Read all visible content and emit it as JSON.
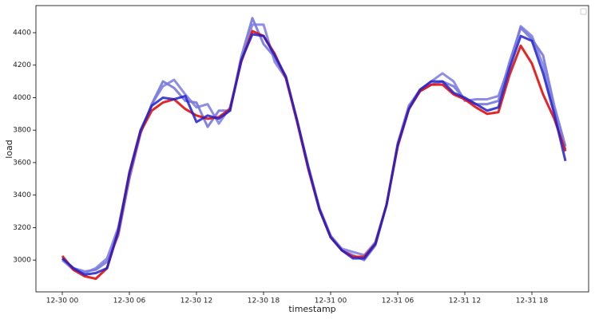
{
  "chart_data": {
    "type": "line",
    "x_label": "timestamp",
    "y_label": "load",
    "x": [
      "12-30 00",
      "12-30 01",
      "12-30 02",
      "12-30 03",
      "12-30 04",
      "12-30 05",
      "12-30 06",
      "12-30 07",
      "12-30 08",
      "12-30 09",
      "12-30 10",
      "12-30 11",
      "12-30 12",
      "12-30 13",
      "12-30 14",
      "12-30 15",
      "12-30 16",
      "12-30 17",
      "12-30 18",
      "12-30 19",
      "12-30 20",
      "12-30 21",
      "12-30 22",
      "12-30 23",
      "12-31 00",
      "12-31 01",
      "12-31 02",
      "12-31 03",
      "12-31 04",
      "12-31 05",
      "12-31 06",
      "12-31 07",
      "12-31 08",
      "12-31 09",
      "12-31 10",
      "12-31 11",
      "12-31 12",
      "12-31 13",
      "12-31 14",
      "12-31 15",
      "12-31 16",
      "12-31 17",
      "12-31 18",
      "12-31 19",
      "12-31 20",
      "12-31 21"
    ],
    "xticks": [
      "12-30 00",
      "12-30 06",
      "12-30 12",
      "12-30 18",
      "12-31 00",
      "12-31 06",
      "12-31 12",
      "12-31 18"
    ],
    "ylim": [
      2804,
      4567
    ],
    "yticks": [
      3000,
      3200,
      3400,
      3600,
      3800,
      4000,
      4200,
      4400
    ],
    "series": [
      {
        "color": "#6e6edc",
        "values": [
          3010,
          2950,
          2930,
          2940,
          2990,
          3150,
          3500,
          3780,
          3960,
          4100,
          4060,
          3980,
          3970,
          3820,
          3920,
          3920,
          4250,
          4490,
          4330,
          4250,
          4120,
          3860,
          3570,
          3320,
          3150,
          3060,
          3030,
          3000,
          3090,
          3340,
          3710,
          3950,
          4040,
          4080,
          4100,
          4070,
          3990,
          3960,
          3960,
          3980,
          4220,
          4430,
          4360,
          4260,
          3950,
          3700
        ]
      },
      {
        "color": "#7a7adf",
        "values": [
          3000,
          2940,
          2920,
          2950,
          3010,
          3200,
          3520,
          3780,
          3960,
          4070,
          4110,
          4020,
          3940,
          3960,
          3840,
          3940,
          4220,
          4450,
          4450,
          4220,
          4120,
          3860,
          3580,
          3320,
          3150,
          3070,
          3050,
          3030,
          3110,
          3340,
          3720,
          3950,
          4050,
          4100,
          4150,
          4100,
          3980,
          3990,
          3990,
          4010,
          4200,
          4440,
          4380,
          4200,
          3920,
          3680
        ]
      },
      {
        "color": "#e01010",
        "values": [
          3025,
          2940,
          2900,
          2885,
          2950,
          3170,
          3530,
          3790,
          3920,
          3970,
          3990,
          3930,
          3890,
          3870,
          3880,
          3930,
          4220,
          4410,
          4380,
          4270,
          4120,
          3850,
          3560,
          3310,
          3140,
          3060,
          3020,
          3020,
          3100,
          3340,
          3700,
          3930,
          4040,
          4080,
          4080,
          4020,
          3990,
          3940,
          3900,
          3910,
          4140,
          4320,
          4210,
          4020,
          3870,
          3670
        ]
      },
      {
        "color": "#2020cc",
        "values": [
          3010,
          2950,
          2910,
          2920,
          2950,
          3180,
          3540,
          3800,
          3950,
          4000,
          3990,
          4010,
          3850,
          3890,
          3870,
          3920,
          4230,
          4390,
          4380,
          4260,
          4130,
          3860,
          3570,
          3310,
          3140,
          3060,
          3010,
          3010,
          3100,
          3340,
          3710,
          3930,
          4050,
          4100,
          4100,
          4030,
          4000,
          3960,
          3920,
          3940,
          4180,
          4380,
          4350,
          4150,
          3900,
          3610
        ]
      }
    ]
  }
}
